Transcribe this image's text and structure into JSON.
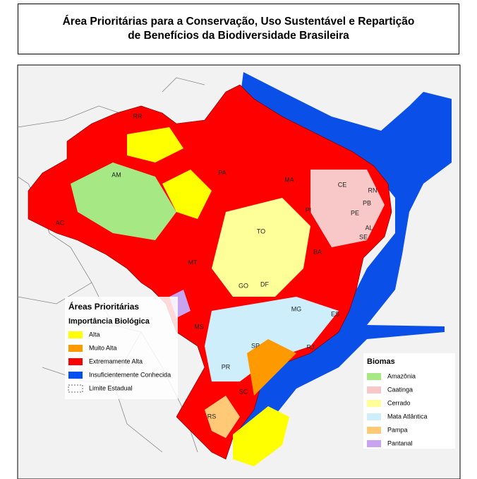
{
  "header": {
    "title": [
      "Área Prioritárias para a Conservação, Uso Sustentável e Repartição",
      "de Benefícios da Biodiversidade Brasileira"
    ]
  },
  "map": {
    "states": [
      "RR",
      "AM",
      "PA",
      "MA",
      "CE",
      "RN",
      "PB",
      "PE",
      "AL",
      "SE",
      "PI",
      "TO",
      "BA",
      "MT",
      "GO",
      "DF",
      "MG",
      "ES",
      "MS",
      "SP",
      "RJ",
      "PR",
      "SC",
      "RS",
      "AC"
    ]
  },
  "legend_areas": {
    "title": "Áreas Prioritárias",
    "subtitle": "Importância Biológica",
    "items": [
      {
        "label": "Alta",
        "color": "#ffff00"
      },
      {
        "label": "Muito Alta",
        "color": "#ff9900"
      },
      {
        "label": "Extremamente Alta",
        "color": "#ff0000"
      },
      {
        "label": "Insuficientemente Conhecida",
        "color": "#0050f0"
      },
      {
        "label": "Limite Estadual",
        "color": "#666666"
      }
    ]
  },
  "legend_biomas": {
    "title": "Biomas",
    "items": [
      {
        "label": "Amazônia",
        "color": "#a6e884"
      },
      {
        "label": "Caatinga",
        "color": "#f8c8c8"
      },
      {
        "label": "Cerrado",
        "color": "#ffff99"
      },
      {
        "label": "Mata Atlântica",
        "color": "#cdeefa"
      },
      {
        "label": "Pampa",
        "color": "#ffc978"
      },
      {
        "label": "Pantanal",
        "color": "#c7a3f0"
      }
    ]
  }
}
